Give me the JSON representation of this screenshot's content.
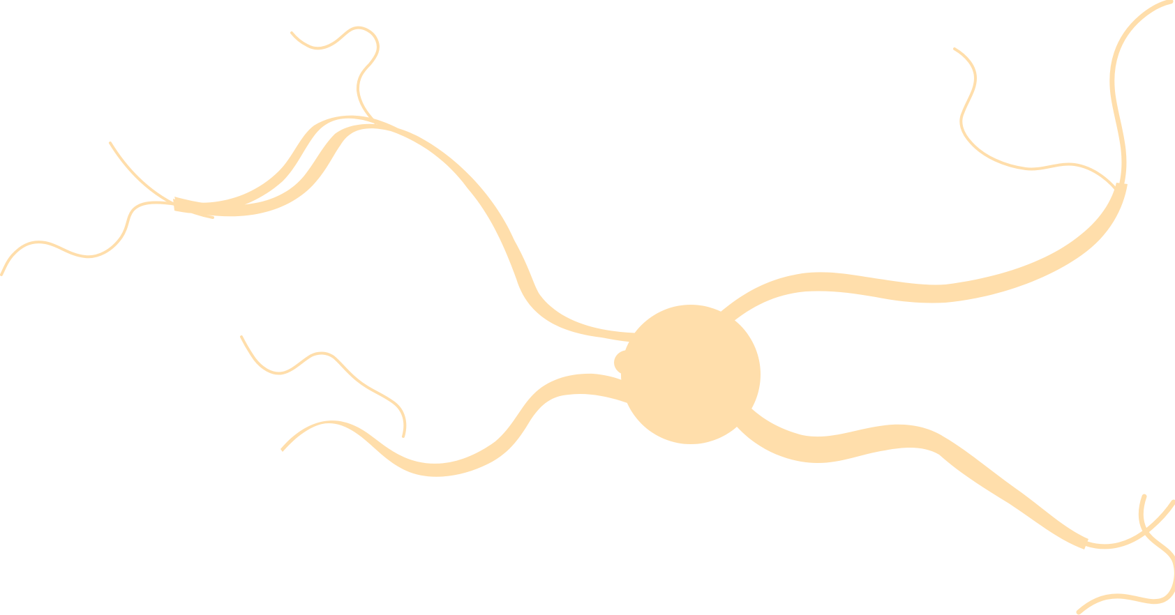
{
  "figure": {
    "subject": "neuron",
    "colors": {
      "cell": "#ffdeab",
      "background": "#ffffff"
    }
  }
}
